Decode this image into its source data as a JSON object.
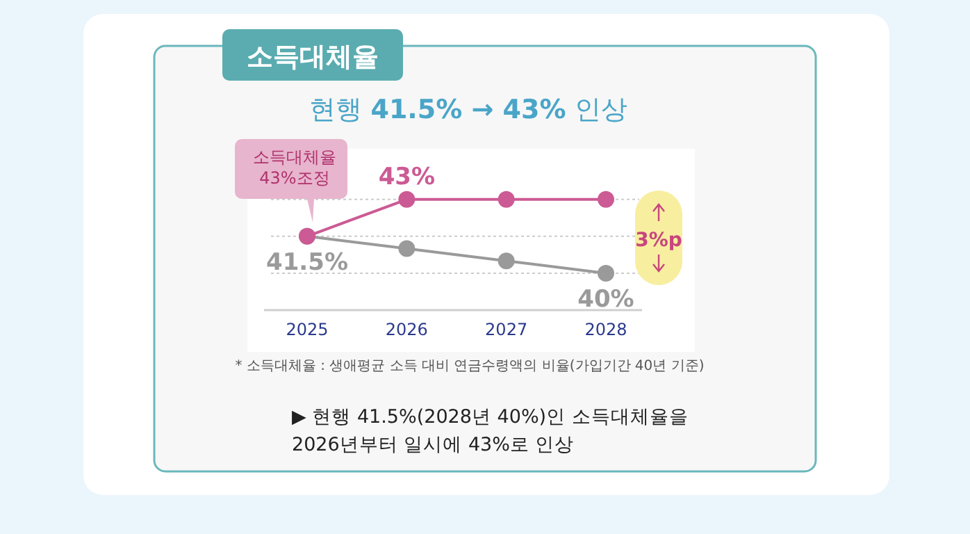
{
  "chart_data": {
    "type": "line",
    "title": "소득대체율",
    "subtitle": "현행 **41.5% → 43%** 인상",
    "categories": [
      "2025",
      "2026",
      "2027",
      "2028"
    ],
    "series": [
      {
        "color": "#cc5a94",
        "values": [
          41.5,
          43,
          43,
          43
        ],
        "value_labels": [
          null,
          "43%",
          null,
          null
        ]
      },
      {
        "color": "#9a9a9a",
        "values": [
          41.5,
          41,
          40.5,
          40
        ],
        "value_labels": [
          "41.5%",
          null,
          null,
          "40%"
        ]
      }
    ],
    "ylim": [
      38.5,
      45
    ],
    "yticks": [
      {
        "value": 40,
        "label": null
      },
      {
        "value": 41.5,
        "label": null
      },
      {
        "value": 43,
        "label": null
      }
    ],
    "grid": "y",
    "tick_labels": "x",
    "marker": "circle",
    "annotations": [
      {
        "text": "소득대체율\n43%조정",
        "x": "2025",
        "y": 41.5
      },
      "3%p",
      "* 소득대체율 : 생애평균 소득 대비 연금수령액의 비율(가입기간 40년 기준)",
      "▶ 현행 41.5%(2028년 40%)인 소득대체율을\n2026년부터 일시에 43%로 인상"
    ]
  }
}
